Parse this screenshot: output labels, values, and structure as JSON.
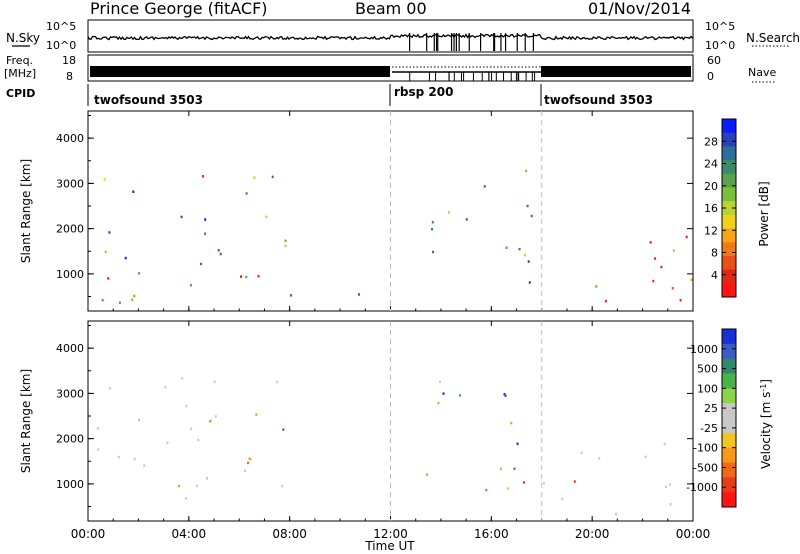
{
  "header": {
    "station": "Prince George (fitACF)",
    "beam": "Beam 00",
    "date": "01/Nov/2014"
  },
  "noise_panel": {
    "left_label": "N.Sky",
    "left_ticks": [
      "10^5",
      "10^0"
    ],
    "right_label": "N.Search",
    "right_ticks": [
      "10^5",
      "10^0"
    ]
  },
  "freq_panel": {
    "left_label_1": "Freq.",
    "left_label_2": "[MHz]",
    "left_ticks": [
      "18",
      "8"
    ],
    "right_label": "Nave",
    "right_ticks": [
      "60",
      "0"
    ]
  },
  "cpid_panel": {
    "label": "CPID",
    "segments": [
      {
        "name": "twofsound 3503",
        "start_h": 0,
        "end_h": 12
      },
      {
        "name": "rbsp 200",
        "start_h": 12,
        "end_h": 18
      },
      {
        "name": "twofsound 3503",
        "start_h": 18,
        "end_h": 24
      }
    ]
  },
  "chart_data": [
    {
      "type": "heatmap",
      "title": "",
      "xlabel": "Time UT",
      "ylabel": "Slant Range [km]",
      "xlim": [
        0,
        24
      ],
      "ylim": [
        180,
        4600
      ],
      "xticks": [
        "00:00",
        "04:00",
        "08:00",
        "12:00",
        "16:00",
        "20:00",
        "00:00"
      ],
      "yticks": [
        1000,
        2000,
        3000,
        4000
      ],
      "colorbar": {
        "label": "Power [dB]",
        "ticks": [
          4,
          8,
          12,
          16,
          20,
          24,
          28
        ],
        "colors": [
          "#0a1cff",
          "#2c3fb8",
          "#2e6e9a",
          "#3b8a6e",
          "#5aa24c",
          "#7dbe3a",
          "#b9d233",
          "#f0d21a",
          "#f7a51a",
          "#f07a16",
          "#e8501a",
          "#e02818",
          "#ff1414"
        ]
      },
      "scatter_regions": [
        {
          "t": [
            0.3,
            3.8
          ],
          "r": [
            300,
            3400
          ],
          "level": "mixed"
        },
        {
          "t": [
            3.0,
            8.0
          ],
          "r": [
            500,
            3300
          ],
          "level": "mixed"
        },
        {
          "t": [
            8.0,
            12.0
          ],
          "r": [
            180,
            700
          ],
          "level": "low"
        },
        {
          "t": [
            13.2,
            17.8
          ],
          "r": [
            800,
            3500
          ],
          "level": "low"
        },
        {
          "t": [
            18.0,
            24.0
          ],
          "r": [
            300,
            2000
          ],
          "level": "high"
        }
      ]
    },
    {
      "type": "heatmap",
      "title": "",
      "xlabel": "Time UT",
      "ylabel": "Slant Range [km]",
      "xlim": [
        0,
        24
      ],
      "ylim": [
        180,
        4600
      ],
      "xticks": [
        "00:00",
        "04:00",
        "08:00",
        "12:00",
        "16:00",
        "20:00",
        "00:00"
      ],
      "yticks": [
        1000,
        2000,
        3000,
        4000
      ],
      "colorbar": {
        "label": "Velocity [m s^-1]",
        "ticks": [
          1000,
          500,
          100,
          25,
          -25,
          -100,
          -500,
          -1000
        ],
        "colors": [
          "#1a2fd6",
          "#3b5cc4",
          "#2e8a6a",
          "#49b34a",
          "#8cd24a",
          "#c8c8c8",
          "#c8c8c8",
          "#f3c420",
          "#f79a1a",
          "#ef6a16",
          "#e83c18",
          "#ff1414"
        ]
      },
      "scatter_regions": [
        {
          "t": [
            0.3,
            8.0
          ],
          "r": [
            600,
            3400
          ],
          "level": "ground"
        },
        {
          "t": [
            4.5,
            7.0
          ],
          "r": [
            1300,
            2600
          ],
          "level": "negative"
        },
        {
          "t": [
            3.0,
            5.0
          ],
          "r": [
            700,
            1300
          ],
          "level": "negative_small"
        },
        {
          "t": [
            13.2,
            17.8
          ],
          "r": [
            800,
            3500
          ],
          "level": "mixed"
        },
        {
          "t": [
            18.0,
            24.0
          ],
          "r": [
            300,
            2000
          ],
          "level": "ground"
        }
      ]
    }
  ]
}
